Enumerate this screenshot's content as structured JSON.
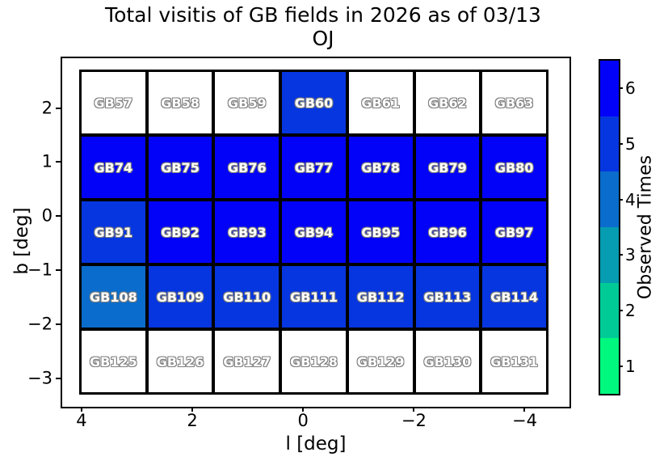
{
  "title": {
    "line1": "Total visitis of GB fields in 2026 as of 03/13",
    "line2": "OJ"
  },
  "chart_data": {
    "type": "heatmap",
    "title": "Total visitis of GB fields in 2026 as of 03/13 OJ",
    "xlabel": "l [deg]",
    "ylabel": "b [deg]",
    "xlim": [
      4.35,
      -4.81
    ],
    "ylim": [
      2.92,
      -3.52
    ],
    "xticks": [
      4,
      2,
      0,
      -2,
      -4
    ],
    "yticks": [
      2,
      1,
      0,
      -1,
      -2,
      -3
    ],
    "grid": false,
    "legend_position": "colorbar-right",
    "colorbar": {
      "label": "Observed Times",
      "ticks": [
        1,
        2,
        3,
        4,
        5,
        6
      ],
      "colors": {
        "1": "#00f87e",
        "2": "#00cb97",
        "3": "#069cb1",
        "4": "#0a6ccc",
        "5": "#0636e0",
        "6": "#0202f8"
      },
      "unobserved_color": "#ffffff"
    },
    "rows": [
      {
        "fields": [
          "GB57",
          "GB58",
          "GB59",
          "GB60",
          "GB61",
          "GB62",
          "GB63"
        ],
        "values": [
          0,
          0,
          0,
          5,
          0,
          0,
          0
        ]
      },
      {
        "fields": [
          "GB74",
          "GB75",
          "GB76",
          "GB77",
          "GB78",
          "GB79",
          "GB80"
        ],
        "values": [
          6,
          6,
          6,
          6,
          6,
          6,
          6
        ]
      },
      {
        "fields": [
          "GB91",
          "GB92",
          "GB93",
          "GB94",
          "GB95",
          "GB96",
          "GB97"
        ],
        "values": [
          5,
          6,
          6,
          6,
          6,
          6,
          6
        ]
      },
      {
        "fields": [
          "GB108",
          "GB109",
          "GB110",
          "GB111",
          "GB112",
          "GB113",
          "GB114"
        ],
        "values": [
          4,
          5,
          5,
          5,
          5,
          5,
          5
        ]
      },
      {
        "fields": [
          "GB125",
          "GB126",
          "GB127",
          "GB128",
          "GB129",
          "GB130",
          "GB131"
        ],
        "values": [
          0,
          0,
          0,
          0,
          0,
          0,
          0
        ]
      }
    ]
  }
}
